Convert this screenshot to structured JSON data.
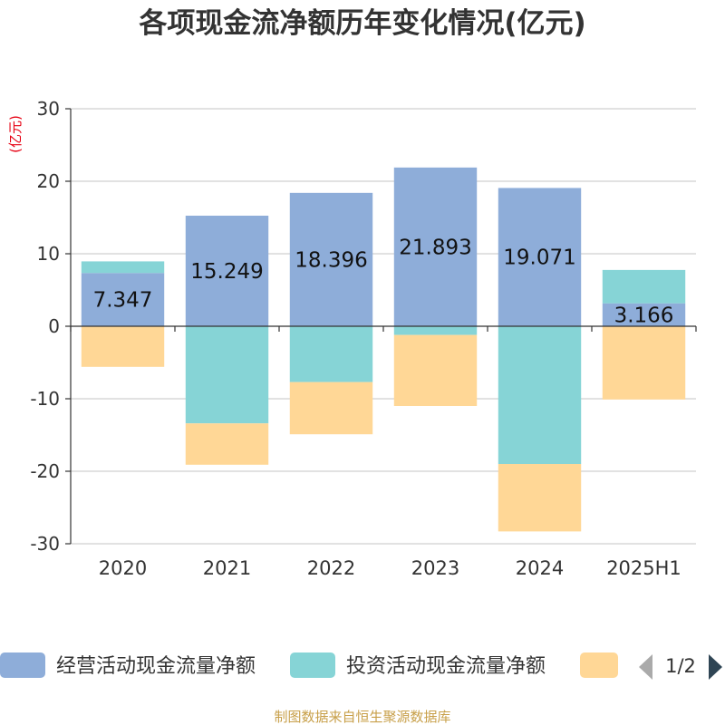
{
  "chart_data": {
    "type": "bar",
    "stacked": true,
    "title": "各项现金流净额历年变化情况(亿元)",
    "unit_label": "(亿元)",
    "categories": [
      "2020",
      "2021",
      "2022",
      "2023",
      "2024",
      "2025H1"
    ],
    "ylim": [
      -30,
      30
    ],
    "yticks": [
      30,
      20,
      10,
      0,
      -10,
      -20,
      -30
    ],
    "grid": true,
    "legend_position": "bottom",
    "series": [
      {
        "name": "经营活动现金流量净额",
        "color": "#8eadd9",
        "values": [
          7.347,
          15.249,
          18.396,
          21.893,
          19.071,
          3.166
        ],
        "labels": [
          "7.347",
          "15.249",
          "18.396",
          "21.893",
          "19.071",
          "3.166"
        ]
      },
      {
        "name": "投资活动现金流量净额",
        "color": "#86d4d6",
        "values": [
          1.6,
          -13.4,
          -7.7,
          -1.2,
          -19.0,
          4.6
        ]
      },
      {
        "name": "",
        "color": "#ffd796",
        "values": [
          -5.6,
          -5.7,
          -7.2,
          -9.8,
          -9.3,
          -10.1
        ]
      }
    ]
  },
  "legend": {
    "page_indicator": "1/2"
  },
  "source": "制图数据来自恒生聚源数据库"
}
